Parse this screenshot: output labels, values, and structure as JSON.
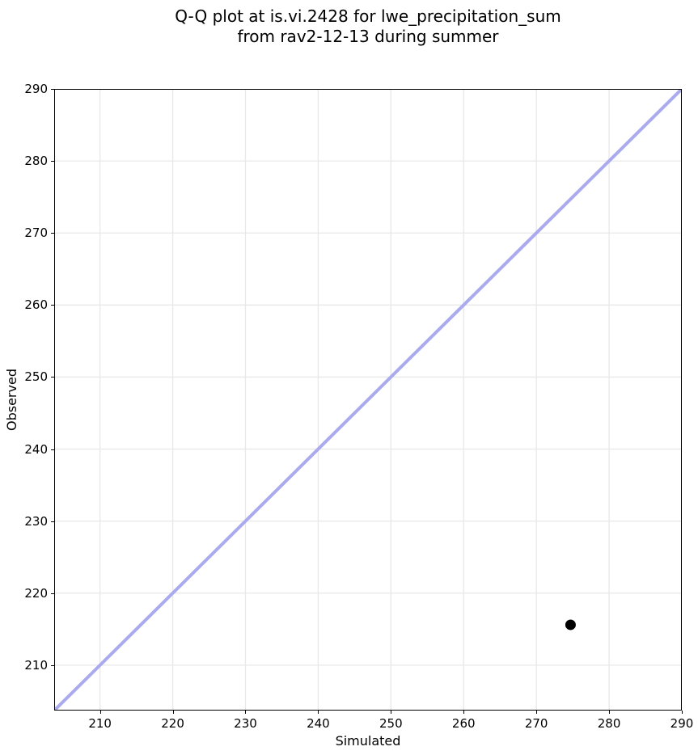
{
  "figure": {
    "title_lines": [
      "Q-Q plot at is.vi.2428 for lwe_precipitation_sum",
      "from rav2-12-13 during summer"
    ],
    "xlabel": "Simulated",
    "ylabel": "Observed"
  },
  "chart_data": {
    "type": "scatter",
    "title": "Q-Q plot at is.vi.2428 for lwe_precipitation_sum from rav2-12-13 during summer",
    "xlabel": "Simulated",
    "ylabel": "Observed",
    "xlim": [
      203.7,
      290
    ],
    "ylim": [
      203.7,
      290
    ],
    "xticks": [
      210,
      220,
      230,
      240,
      250,
      260,
      270,
      280,
      290
    ],
    "yticks": [
      210,
      220,
      230,
      240,
      250,
      260,
      270,
      280,
      290
    ],
    "grid": true,
    "legend": false,
    "points": [
      {
        "x": 274.7,
        "y": 215.6
      }
    ],
    "reference_line": {
      "name": "identity-line",
      "from": [
        203.7,
        203.7
      ],
      "to": [
        290,
        290
      ],
      "color": "#aaaaef",
      "width": 4
    },
    "point_color": "#000000",
    "point_radius": 6.5,
    "grid_color": "#e8e8e8",
    "spine_color": "#000000",
    "background": "#ffffff"
  }
}
